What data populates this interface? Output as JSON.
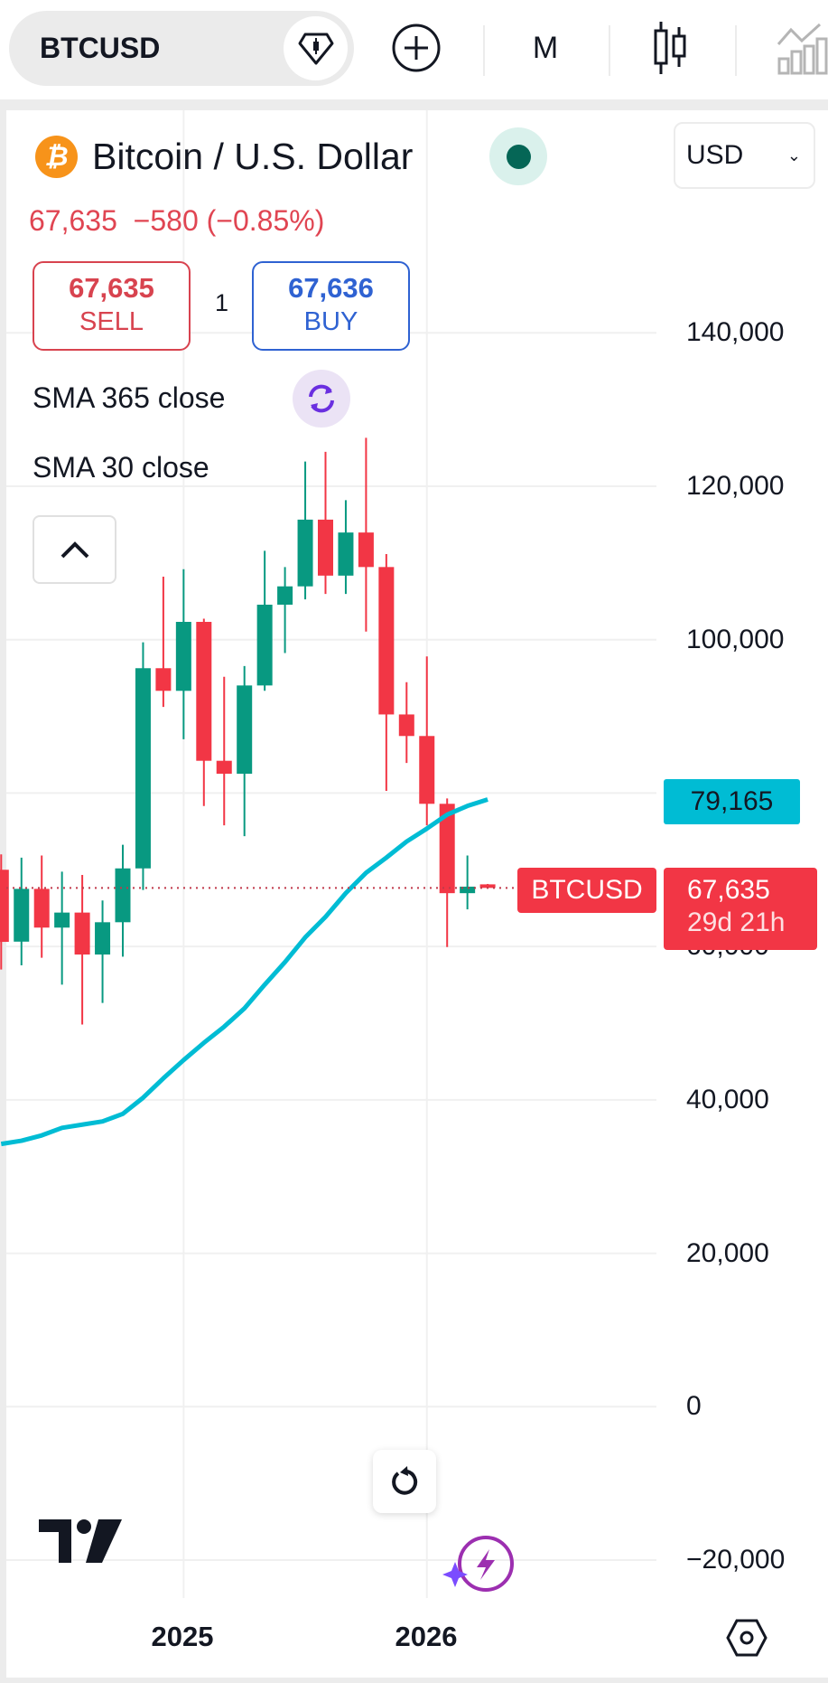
{
  "toolbar": {
    "symbol": "BTCUSD",
    "interval": "M",
    "icons": [
      "diamond-icon",
      "plus-circle-icon",
      "candles-icon",
      "chart-type-icon"
    ]
  },
  "header": {
    "title": "Bitcoin / U.S. Dollar",
    "currency": "USD",
    "market_status_color": "#056656",
    "quote_line": "67,635  −580 (−0.85%)"
  },
  "trade": {
    "sell_price": "67,635",
    "sell_label": "SELL",
    "quantity": "1",
    "buy_price": "67,636",
    "buy_label": "BUY"
  },
  "indicators": [
    {
      "label": "SMA 365 close"
    },
    {
      "label": "SMA 30 close"
    }
  ],
  "price_axis": [
    "140,000",
    "120,000",
    "100,000",
    "60,000",
    "40,000",
    "20,000",
    "0",
    "−20,000"
  ],
  "time_axis": [
    "2025",
    "2026"
  ],
  "sma_tag": "79,165",
  "symbol_tag": "BTCUSD",
  "last_price_tag": "67,635",
  "countdown": "29d 21h",
  "colors": {
    "up": "#089981",
    "down": "#f23645",
    "sma": "#00bcd4",
    "accent_purple": "#8e3fcf"
  },
  "chart_data": {
    "type": "candlestick",
    "interval": "monthly",
    "ylim": [
      -20000,
      140000
    ],
    "yticks": [
      -20000,
      0,
      20000,
      40000,
      60000,
      80000,
      100000,
      120000,
      140000
    ],
    "xticks": [
      "2025",
      "2026"
    ],
    "grid": true,
    "last_price": 67635,
    "candles": [
      {
        "date": "2024-04",
        "o": 70000,
        "h": 72000,
        "l": 57000,
        "c": 60600
      },
      {
        "date": "2024-05",
        "o": 60630,
        "h": 71580,
        "l": 57540,
        "c": 67510
      },
      {
        "date": "2024-06",
        "o": 67510,
        "h": 71860,
        "l": 58530,
        "c": 62460
      },
      {
        "date": "2024-07",
        "o": 62460,
        "h": 69750,
        "l": 55020,
        "c": 64420
      },
      {
        "date": "2024-08",
        "o": 64420,
        "h": 69330,
        "l": 49820,
        "c": 58950
      },
      {
        "date": "2024-09",
        "o": 58950,
        "h": 66000,
        "l": 52630,
        "c": 63160
      },
      {
        "date": "2024-10",
        "o": 63160,
        "h": 73260,
        "l": 58670,
        "c": 70180
      },
      {
        "date": "2024-11",
        "o": 70180,
        "h": 99650,
        "l": 67370,
        "c": 96280
      },
      {
        "date": "2024-12",
        "o": 96280,
        "h": 108210,
        "l": 91230,
        "c": 93330
      },
      {
        "date": "2025-01",
        "o": 93330,
        "h": 109190,
        "l": 87020,
        "c": 102320
      },
      {
        "date": "2025-02",
        "o": 102320,
        "h": 102740,
        "l": 78310,
        "c": 84210
      },
      {
        "date": "2025-03",
        "o": 84210,
        "h": 95160,
        "l": 75790,
        "c": 82520
      },
      {
        "date": "2025-04",
        "o": 82520,
        "h": 96560,
        "l": 74380,
        "c": 94030
      },
      {
        "date": "2025-05",
        "o": 94030,
        "h": 111580,
        "l": 93330,
        "c": 104560
      },
      {
        "date": "2025-06",
        "o": 104560,
        "h": 109470,
        "l": 98250,
        "c": 106950
      },
      {
        "date": "2025-07",
        "o": 106950,
        "h": 123230,
        "l": 105260,
        "c": 115650
      },
      {
        "date": "2025-08",
        "o": 115650,
        "h": 124490,
        "l": 105960,
        "c": 108350
      },
      {
        "date": "2025-09",
        "o": 108350,
        "h": 118180,
        "l": 105960,
        "c": 113970
      },
      {
        "date": "2025-10",
        "o": 113970,
        "h": 126310,
        "l": 101050,
        "c": 109470
      },
      {
        "date": "2025-11",
        "o": 109470,
        "h": 111160,
        "l": 80280,
        "c": 90250
      },
      {
        "date": "2025-12",
        "o": 90250,
        "h": 94450,
        "l": 83930,
        "c": 87440
      },
      {
        "date": "2026-01",
        "o": 87440,
        "h": 97820,
        "l": 75790,
        "c": 78600
      },
      {
        "date": "2026-02",
        "o": 78600,
        "h": 79300,
        "l": 59930,
        "c": 66950
      },
      {
        "date": "2026-03",
        "o": 66950,
        "h": 71860,
        "l": 64840,
        "c": 67800
      },
      {
        "date": "2026-04",
        "o": 68100,
        "h": 68150,
        "l": 67600,
        "c": 67635
      }
    ],
    "sma": [
      34250,
      34670,
      35370,
      36350,
      36770,
      37190,
      38180,
      40280,
      42810,
      45190,
      47440,
      49540,
      51930,
      55020,
      57960,
      61190,
      63860,
      66950,
      69610,
      71580,
      73680,
      75370,
      77190,
      78320,
      79165
    ]
  }
}
